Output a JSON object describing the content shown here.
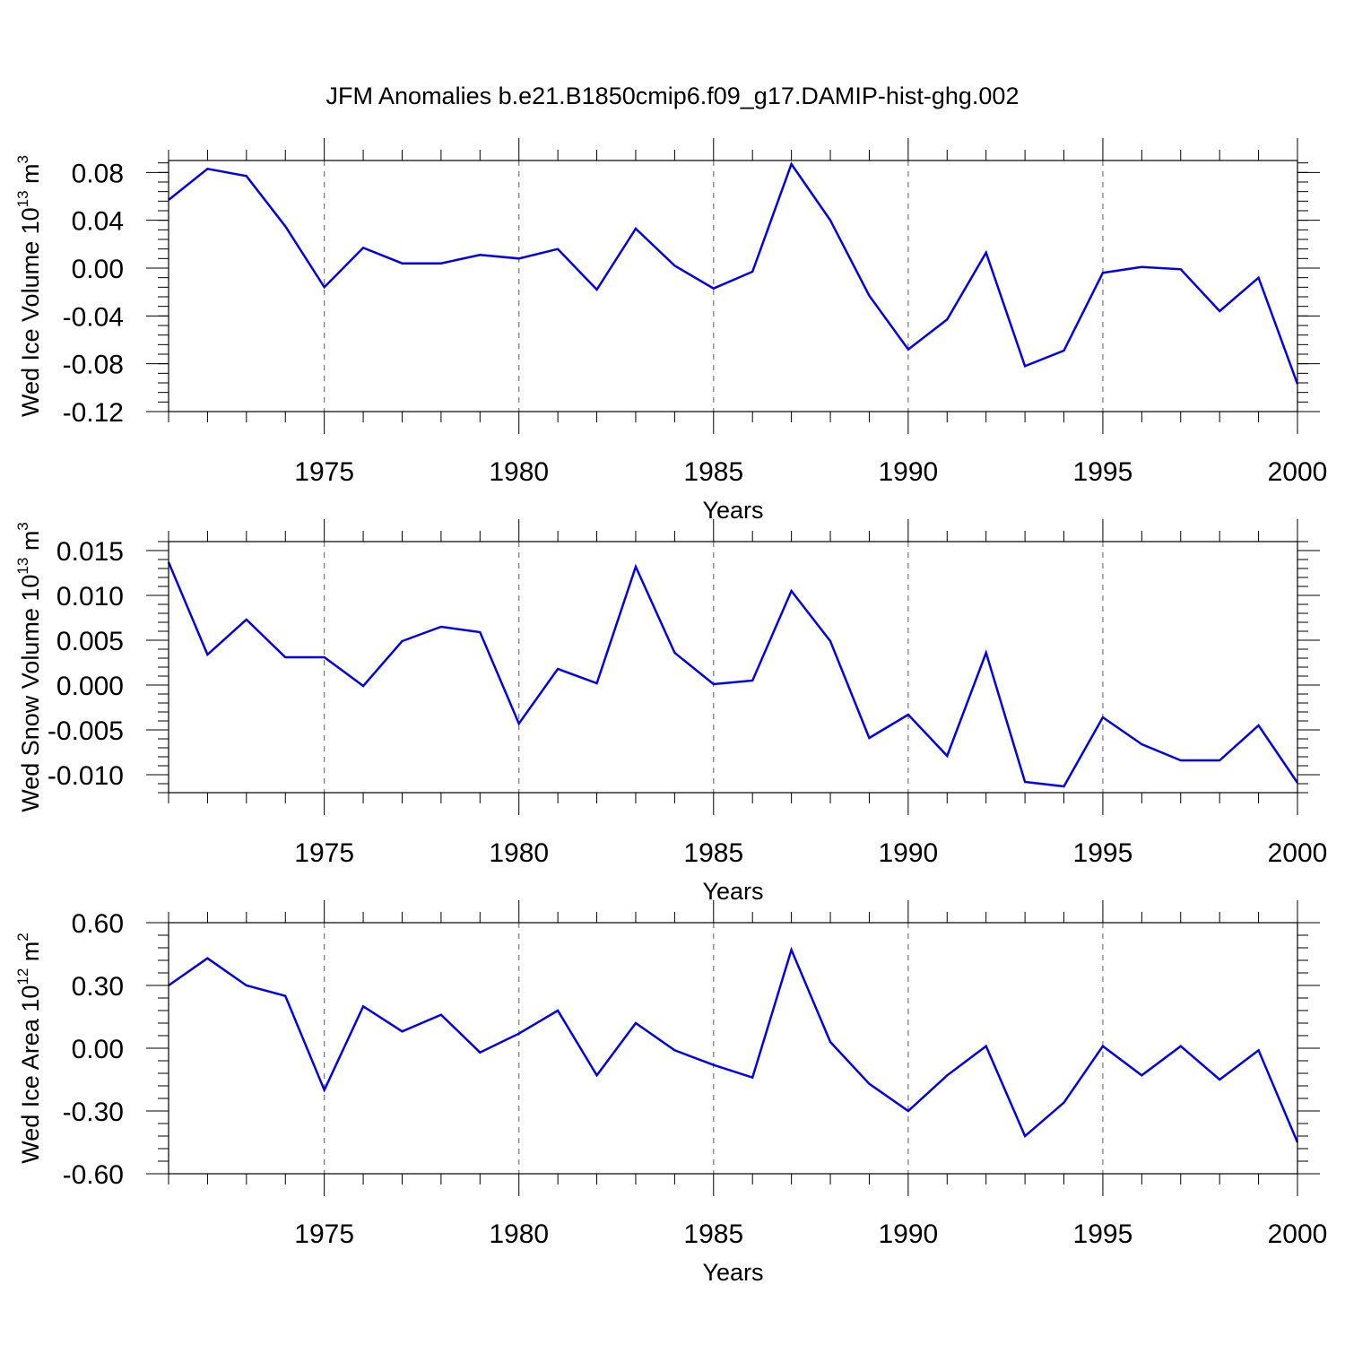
{
  "title": "JFM Anomalies b.e21.B1850cmip6.f09_g17.DAMIP-hist-ghg.002",
  "chart_data": [
    {
      "type": "line",
      "ylabel": {
        "base": "Wed Ice Volume 10",
        "exp": "13",
        "unit": " m",
        "unit_exp": "3"
      },
      "xlabel": "Years",
      "xlim": [
        1971,
        2000
      ],
      "ylim": [
        -0.12,
        0.09
      ],
      "yticks": [
        -0.12,
        -0.08,
        -0.04,
        0.0,
        0.04,
        0.08
      ],
      "ytick_labels": [
        "-0.12",
        "-0.08",
        "-0.04",
        "0.00",
        "0.04",
        "0.08"
      ],
      "yminor_step": 0.008,
      "xticks": [
        1975,
        1980,
        1985,
        1990,
        1995,
        2000
      ],
      "xtick_labels": [
        "1975",
        "1980",
        "1985",
        "1990",
        "1995",
        "2000"
      ],
      "color": "#0000ee",
      "grid": "vertical-dashed",
      "x": [
        1971,
        1972,
        1973,
        1974,
        1975,
        1976,
        1977,
        1978,
        1979,
        1980,
        1981,
        1982,
        1983,
        1984,
        1985,
        1986,
        1987,
        1988,
        1989,
        1990,
        1991,
        1992,
        1993,
        1994,
        1995,
        1996,
        1997,
        1998,
        1999,
        2000
      ],
      "values": [
        0.057,
        0.083,
        0.077,
        0.035,
        -0.016,
        0.017,
        0.004,
        0.004,
        0.011,
        0.008,
        0.016,
        -0.018,
        0.033,
        0.002,
        -0.017,
        -0.003,
        0.087,
        0.04,
        -0.023,
        -0.068,
        -0.043,
        0.013,
        -0.082,
        -0.069,
        -0.004,
        0.001,
        -0.001,
        -0.036,
        -0.008,
        -0.097
      ]
    },
    {
      "type": "line",
      "ylabel": {
        "base": "Wed Snow Volume 10",
        "exp": "13",
        "unit": " m",
        "unit_exp": "3"
      },
      "xlabel": "Years",
      "xlim": [
        1971,
        2000
      ],
      "ylim": [
        -0.012,
        0.016
      ],
      "yticks": [
        -0.01,
        -0.005,
        0.0,
        0.005,
        0.01,
        0.015
      ],
      "ytick_labels": [
        "-0.010",
        "-0.005",
        "0.000",
        "0.005",
        "0.010",
        "0.015"
      ],
      "yminor_step": 0.001,
      "xticks": [
        1975,
        1980,
        1985,
        1990,
        1995,
        2000
      ],
      "xtick_labels": [
        "1975",
        "1980",
        "1985",
        "1990",
        "1995",
        "2000"
      ],
      "color": "#0000ee",
      "grid": "vertical-dashed",
      "x": [
        1971,
        1972,
        1973,
        1974,
        1975,
        1976,
        1977,
        1978,
        1979,
        1980,
        1981,
        1982,
        1983,
        1984,
        1985,
        1986,
        1987,
        1988,
        1989,
        1990,
        1991,
        1992,
        1993,
        1994,
        1995,
        1996,
        1997,
        1998,
        1999,
        2000
      ],
      "values": [
        0.0137,
        0.0034,
        0.0073,
        0.0031,
        0.0031,
        -0.0001,
        0.0049,
        0.0065,
        0.0059,
        -0.0043,
        0.0018,
        0.0002,
        0.0132,
        0.0036,
        0.0001,
        0.0005,
        0.0105,
        0.0049,
        -0.0059,
        -0.0033,
        -0.0079,
        0.0036,
        -0.0108,
        -0.0113,
        -0.0036,
        -0.0066,
        -0.0084,
        -0.0084,
        -0.0045,
        -0.0109
      ]
    },
    {
      "type": "line",
      "ylabel": {
        "base": "Wed Ice Area 10",
        "exp": "12",
        "unit": " m",
        "unit_exp": "2"
      },
      "xlabel": "Years",
      "xlim": [
        1971,
        2000
      ],
      "ylim": [
        -0.6,
        0.6
      ],
      "yticks": [
        -0.6,
        -0.3,
        0.0,
        0.3,
        0.6
      ],
      "ytick_labels": [
        "-0.60",
        "-0.30",
        "0.00",
        "0.30",
        "0.60"
      ],
      "yminor_step": 0.06,
      "xticks": [
        1975,
        1980,
        1985,
        1990,
        1995,
        2000
      ],
      "xtick_labels": [
        "1975",
        "1980",
        "1985",
        "1990",
        "1995",
        "2000"
      ],
      "color": "#0000ee",
      "grid": "vertical-dashed",
      "x": [
        1971,
        1972,
        1973,
        1974,
        1975,
        1976,
        1977,
        1978,
        1979,
        1980,
        1981,
        1982,
        1983,
        1984,
        1985,
        1986,
        1987,
        1988,
        1989,
        1990,
        1991,
        1992,
        1993,
        1994,
        1995,
        1996,
        1997,
        1998,
        1999,
        2000
      ],
      "values": [
        0.3,
        0.43,
        0.3,
        0.25,
        -0.2,
        0.2,
        0.08,
        0.16,
        -0.02,
        0.07,
        0.18,
        -0.13,
        0.12,
        -0.01,
        -0.08,
        -0.14,
        0.47,
        0.03,
        -0.17,
        -0.3,
        -0.13,
        0.01,
        -0.42,
        -0.26,
        0.01,
        -0.13,
        0.01,
        -0.15,
        -0.01,
        -0.45
      ]
    }
  ]
}
